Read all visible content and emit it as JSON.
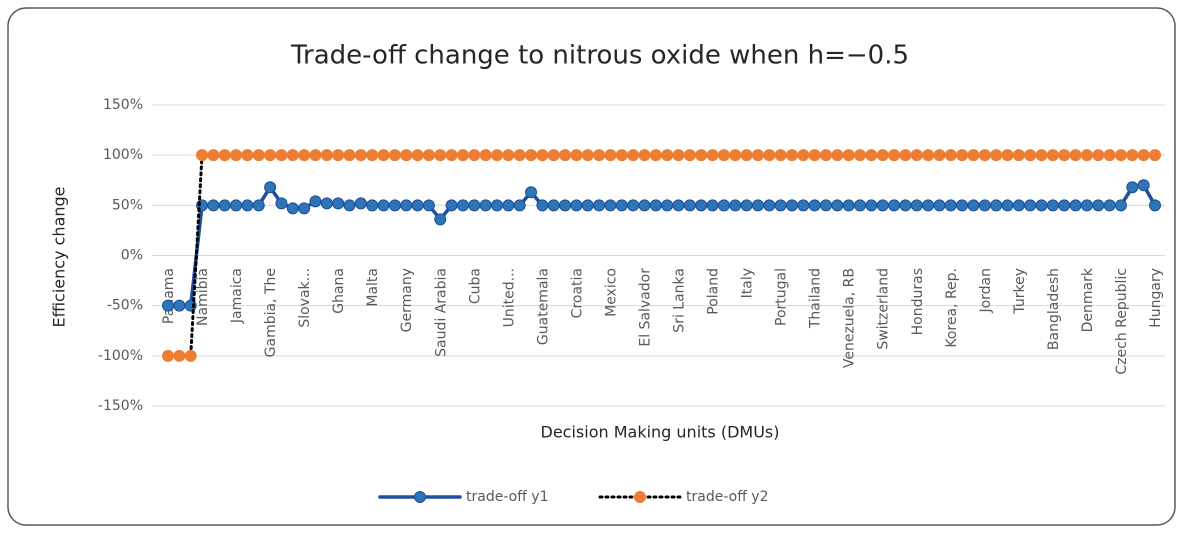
{
  "chart_data": {
    "type": "line",
    "title": "Trade-off change to nitrous oxide when h=−0.5",
    "x_label": "Decision Making units (DMUs)",
    "y_label": "Efficiency change",
    "categories": [
      "Panama",
      null,
      null,
      "Namibia",
      null,
      null,
      "Jamaica",
      null,
      null,
      "Gambia, The",
      null,
      null,
      "Slovak...",
      null,
      null,
      "Ghana",
      null,
      null,
      "Malta",
      null,
      null,
      "Germany",
      null,
      null,
      "Saudi Arabia",
      null,
      null,
      "Cuba",
      null,
      null,
      "United...",
      null,
      null,
      "Guatemala",
      null,
      null,
      "Croatia",
      null,
      null,
      "Mexico",
      null,
      null,
      "El Salvador",
      null,
      null,
      "Sri Lanka",
      null,
      null,
      "Poland",
      null,
      null,
      "Italy",
      null,
      null,
      "Portugal",
      null,
      null,
      "Thailand",
      null,
      null,
      "Venezuela, RB",
      null,
      null,
      "Switzerland",
      null,
      null,
      "Honduras",
      null,
      null,
      "Korea, Rep.",
      null,
      null,
      "Jordan",
      null,
      null,
      "Turkey",
      null,
      null,
      "Bangladesh",
      null,
      null,
      "Denmark",
      null,
      null,
      "Czech Republic",
      null,
      null,
      "Hungary"
    ],
    "series": [
      {
        "name": "trade-off y1",
        "color": "#2e75b6",
        "line_color": "#1f4e9a",
        "dash": "solid",
        "values": [
          -50,
          -50,
          -50,
          50,
          50,
          50,
          50,
          50,
          50,
          68,
          52,
          47,
          47,
          54,
          52,
          52,
          50,
          52,
          50,
          50,
          50,
          50,
          50,
          50,
          36,
          50,
          50,
          50,
          50,
          50,
          50,
          50,
          63,
          50,
          50,
          50,
          50,
          50,
          50,
          50,
          50,
          50,
          50,
          50,
          50,
          50,
          50,
          50,
          50,
          50,
          50,
          50,
          50,
          50,
          50,
          50,
          50,
          50,
          50,
          50,
          50,
          50,
          50,
          50,
          50,
          50,
          50,
          50,
          50,
          50,
          50,
          50,
          50,
          50,
          50,
          50,
          50,
          50,
          50,
          50,
          50,
          50,
          50,
          50,
          50,
          68,
          70,
          50
        ]
      },
      {
        "name": "trade-off y2",
        "color": "#ed7d31",
        "line_color": "#000000",
        "dash": "dotted",
        "values": [
          -100,
          -100,
          -100,
          100,
          100,
          100,
          100,
          100,
          100,
          100,
          100,
          100,
          100,
          100,
          100,
          100,
          100,
          100,
          100,
          100,
          100,
          100,
          100,
          100,
          100,
          100,
          100,
          100,
          100,
          100,
          100,
          100,
          100,
          100,
          100,
          100,
          100,
          100,
          100,
          100,
          100,
          100,
          100,
          100,
          100,
          100,
          100,
          100,
          100,
          100,
          100,
          100,
          100,
          100,
          100,
          100,
          100,
          100,
          100,
          100,
          100,
          100,
          100,
          100,
          100,
          100,
          100,
          100,
          100,
          100,
          100,
          100,
          100,
          100,
          100,
          100,
          100,
          100,
          100,
          100,
          100,
          100,
          100,
          100,
          100,
          100,
          100,
          100
        ]
      }
    ],
    "ylim": [
      -150,
      150
    ],
    "yticks": [
      {
        "value": -150,
        "label": "-150%"
      },
      {
        "value": -100,
        "label": "-100%"
      },
      {
        "value": -50,
        "label": "-50%"
      },
      {
        "value": 0,
        "label": "0%"
      },
      {
        "value": 50,
        "label": "50%"
      },
      {
        "value": 100,
        "label": "100%"
      },
      {
        "value": 150,
        "label": "150%"
      }
    ],
    "grid": true,
    "legend": "bottom"
  }
}
